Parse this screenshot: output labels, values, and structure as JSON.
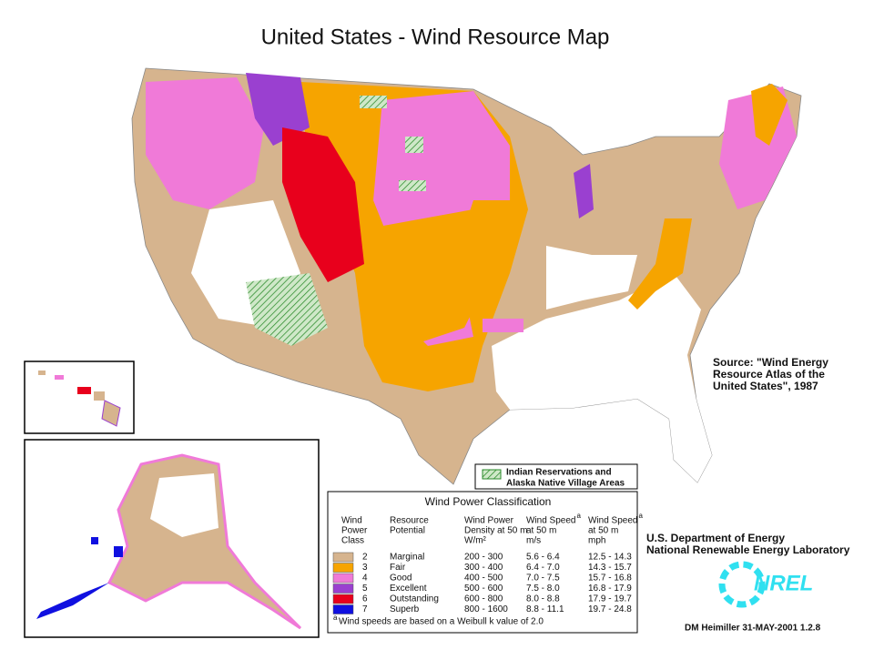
{
  "title": "United States - Wind Resource Map",
  "source": [
    "Source:  \"Wind Energy",
    "Resource Atlas of the",
    "United States\", 1987"
  ],
  "reservations_legend": [
    "Indian Reservations and",
    "Alaska Native Village Areas"
  ],
  "classification": {
    "title": "Wind Power Classification",
    "footnote_mark": "a",
    "headers": [
      [
        "Wind",
        "Power",
        "Class"
      ],
      [
        "Resource",
        "Potential"
      ],
      [
        "Wind Power",
        "Density at 50 m",
        "W/m²"
      ],
      [
        "Wind Speed",
        "at 50 m",
        "m/s"
      ],
      [
        "Wind Speed",
        "at 50 m",
        "mph"
      ]
    ],
    "rows": [
      {
        "class": "2",
        "potential": "Marginal",
        "density": "200 - 300",
        "speed_ms": "5.6 - 6.4",
        "speed_mph": "12.5 - 14.3",
        "color": "#d6b48e"
      },
      {
        "class": "3",
        "potential": "Fair",
        "density": "300 - 400",
        "speed_ms": "6.4 - 7.0",
        "speed_mph": "14.3 - 15.7",
        "color": "#f6a400"
      },
      {
        "class": "4",
        "potential": "Good",
        "density": "400 - 500",
        "speed_ms": "7.0 - 7.5",
        "speed_mph": "15.7 - 16.8",
        "color": "#f07ad8"
      },
      {
        "class": "5",
        "potential": "Excellent",
        "density": "500 - 600",
        "speed_ms": "7.5 - 8.0",
        "speed_mph": "16.8 - 17.9",
        "color": "#9a40d0"
      },
      {
        "class": "6",
        "potential": "Outstanding",
        "density": "600 - 800",
        "speed_ms": "8.0 - 8.8",
        "speed_mph": "17.9 - 19.7",
        "color": "#e8001c"
      },
      {
        "class": "7",
        "potential": "Superb",
        "density": "800 - 1600",
        "speed_ms": "8.8 - 11.1",
        "speed_mph": "19.7 - 24.8",
        "color": "#1010e0"
      }
    ],
    "footnote": "Wind speeds are based on a Weibull k value of 2.0"
  },
  "agency": [
    "U.S. Department of Energy",
    "National Renewable Energy Laboratory"
  ],
  "logo": "NREL",
  "credit": "DM Heimiller 31-MAY-2001 1.2.8"
}
